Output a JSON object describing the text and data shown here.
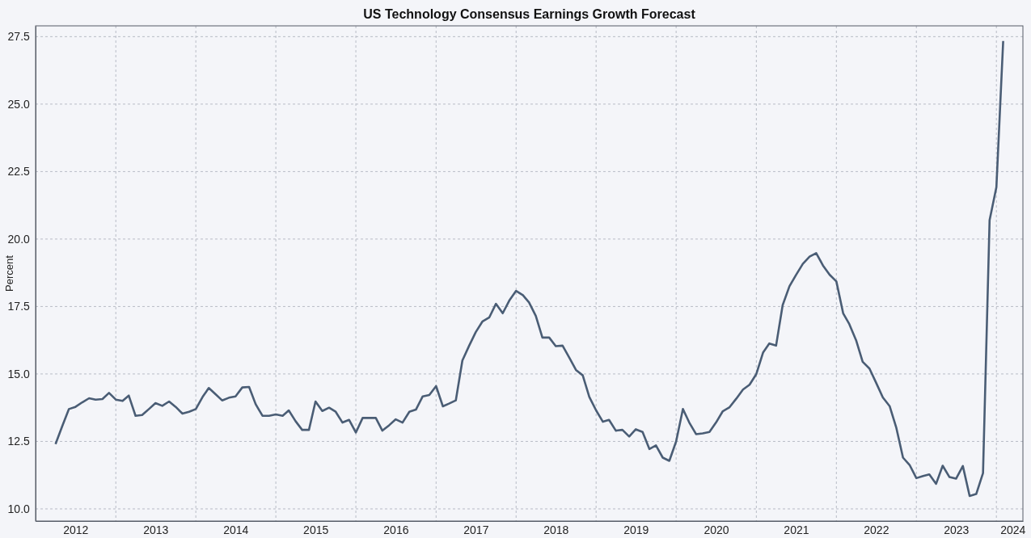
{
  "chart_data": {
    "type": "line",
    "title": "US Technology Consensus Earnings Growth Forecast",
    "ylabel": "Percent",
    "x": [
      "2012-04",
      "2012-05",
      "2012-06",
      "2012-07",
      "2012-08",
      "2012-09",
      "2012-10",
      "2012-11",
      "2012-12",
      "2013-01",
      "2013-02",
      "2013-03",
      "2013-04",
      "2013-05",
      "2013-06",
      "2013-07",
      "2013-08",
      "2013-09",
      "2013-10",
      "2013-11",
      "2013-12",
      "2014-01",
      "2014-02",
      "2014-03",
      "2014-04",
      "2014-05",
      "2014-06",
      "2014-07",
      "2014-08",
      "2014-09",
      "2014-10",
      "2014-11",
      "2014-12",
      "2015-01",
      "2015-02",
      "2015-03",
      "2015-04",
      "2015-05",
      "2015-06",
      "2015-07",
      "2015-08",
      "2015-09",
      "2015-10",
      "2015-11",
      "2015-12",
      "2016-01",
      "2016-02",
      "2016-03",
      "2016-04",
      "2016-05",
      "2016-06",
      "2016-07",
      "2016-08",
      "2016-09",
      "2016-10",
      "2016-11",
      "2016-12",
      "2017-01",
      "2017-02",
      "2017-03",
      "2017-04",
      "2017-05",
      "2017-06",
      "2017-07",
      "2017-08",
      "2017-09",
      "2017-10",
      "2017-11",
      "2017-12",
      "2018-01",
      "2018-02",
      "2018-03",
      "2018-04",
      "2018-05",
      "2018-06",
      "2018-07",
      "2018-08",
      "2018-09",
      "2018-10",
      "2018-11",
      "2018-12",
      "2019-01",
      "2019-02",
      "2019-03",
      "2019-04",
      "2019-05",
      "2019-06",
      "2019-07",
      "2019-08",
      "2019-09",
      "2019-10",
      "2019-11",
      "2019-12",
      "2020-01",
      "2020-02",
      "2020-03",
      "2020-04",
      "2020-05",
      "2020-06",
      "2020-07",
      "2020-08",
      "2020-09",
      "2020-10",
      "2020-11",
      "2020-12",
      "2021-01",
      "2021-02",
      "2021-03",
      "2021-04",
      "2021-05",
      "2021-06",
      "2021-07",
      "2021-08",
      "2021-09",
      "2021-10",
      "2021-11",
      "2021-12",
      "2022-01",
      "2022-02",
      "2022-03",
      "2022-04",
      "2022-05",
      "2022-06",
      "2022-07",
      "2022-08",
      "2022-09",
      "2022-10",
      "2022-11",
      "2022-12",
      "2023-01",
      "2023-02",
      "2023-03",
      "2023-04",
      "2023-05",
      "2023-06",
      "2023-07",
      "2023-08",
      "2023-09",
      "2023-10",
      "2023-11",
      "2023-12",
      "2024-01",
      "2024-02"
    ],
    "series": [
      {
        "color": "#4a5d75",
        "values": [
          12.4,
          13.05,
          13.7,
          13.78,
          13.95,
          14.1,
          14.05,
          14.07,
          14.3,
          14.05,
          14.0,
          14.2,
          13.45,
          13.48,
          13.7,
          13.92,
          13.82,
          13.98,
          13.78,
          13.53,
          13.6,
          13.7,
          14.15,
          14.48,
          14.25,
          14.02,
          14.12,
          14.17,
          14.5,
          14.52,
          13.88,
          13.45,
          13.45,
          13.5,
          13.45,
          13.65,
          13.25,
          12.93,
          12.93,
          13.98,
          13.63,
          13.75,
          13.6,
          13.2,
          13.3,
          12.83,
          13.37,
          13.37,
          13.37,
          12.9,
          13.1,
          13.32,
          13.2,
          13.6,
          13.68,
          14.17,
          14.22,
          14.55,
          13.8,
          13.9,
          14.02,
          15.5,
          16.05,
          16.55,
          16.95,
          17.1,
          17.6,
          17.25,
          17.72,
          18.08,
          17.92,
          17.65,
          17.15,
          16.35,
          16.35,
          16.03,
          16.05,
          15.6,
          15.15,
          14.95,
          14.15,
          13.65,
          13.23,
          13.3,
          12.9,
          12.93,
          12.68,
          12.95,
          12.85,
          12.22,
          12.35,
          11.9,
          11.78,
          12.5,
          13.7,
          13.2,
          12.77,
          12.8,
          12.85,
          13.2,
          13.62,
          13.77,
          14.08,
          14.42,
          14.6,
          15.0,
          15.8,
          16.13,
          16.05,
          17.55,
          18.25,
          18.67,
          19.08,
          19.35,
          19.48,
          19.02,
          18.68,
          18.43,
          17.25,
          16.85,
          16.25,
          15.45,
          15.2,
          14.68,
          14.13,
          13.81,
          13.02,
          11.9,
          11.63,
          11.14,
          11.22,
          11.28,
          10.93,
          11.6,
          11.18,
          11.12,
          11.59,
          10.48,
          10.55,
          11.33,
          20.7,
          21.92,
          27.34
        ]
      }
    ],
    "xlim": [
      "2012-01",
      "2024-05"
    ],
    "xticks": [
      {
        "value": "2012-07",
        "label": "2012"
      },
      {
        "value": "2013-01",
        "label": null
      },
      {
        "value": "2013-07",
        "label": "2013"
      },
      {
        "value": "2014-01",
        "label": null
      },
      {
        "value": "2014-07",
        "label": "2014"
      },
      {
        "value": "2015-01",
        "label": null
      },
      {
        "value": "2015-07",
        "label": "2015"
      },
      {
        "value": "2016-01",
        "label": null
      },
      {
        "value": "2016-07",
        "label": "2016"
      },
      {
        "value": "2017-01",
        "label": null
      },
      {
        "value": "2017-07",
        "label": "2017"
      },
      {
        "value": "2018-01",
        "label": null
      },
      {
        "value": "2018-07",
        "label": "2018"
      },
      {
        "value": "2019-01",
        "label": null
      },
      {
        "value": "2019-07",
        "label": "2019"
      },
      {
        "value": "2020-01",
        "label": null
      },
      {
        "value": "2020-07",
        "label": "2020"
      },
      {
        "value": "2021-01",
        "label": null
      },
      {
        "value": "2021-07",
        "label": "2021"
      },
      {
        "value": "2022-01",
        "label": null
      },
      {
        "value": "2022-07",
        "label": "2022"
      },
      {
        "value": "2023-01",
        "label": null
      },
      {
        "value": "2023-07",
        "label": "2023"
      },
      {
        "value": "2024-01",
        "label": null
      },
      {
        "value": "2024-03-15",
        "label": "2024"
      }
    ],
    "ylim": [
      9.55,
      27.9
    ],
    "yticks": [
      {
        "value": 10,
        "label": "10.0"
      },
      {
        "value": 12.5,
        "label": "12.5"
      },
      {
        "value": 15,
        "label": "15.0"
      },
      {
        "value": 17.5,
        "label": "17.5"
      },
      {
        "value": 20,
        "label": "20.0"
      },
      {
        "value": 22.5,
        "label": "22.5"
      },
      {
        "value": 25,
        "label": "25.0"
      },
      {
        "value": 27.5,
        "label": "27.5"
      }
    ],
    "grid": true,
    "marker": "none",
    "line_style": "solid"
  }
}
